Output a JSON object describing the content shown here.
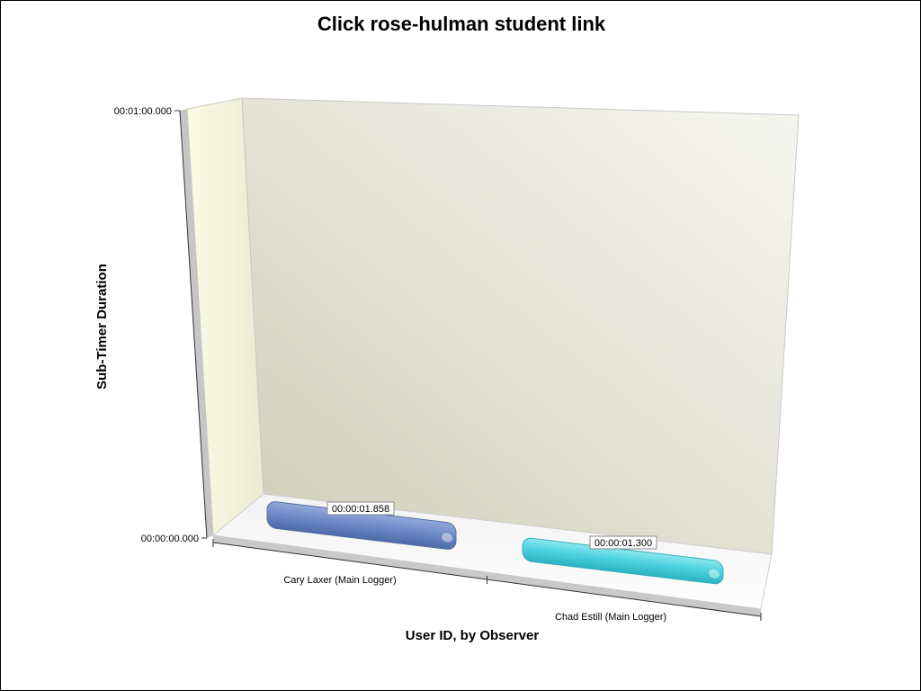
{
  "chart_data": {
    "type": "bar",
    "title": "Click rose-hulman student link",
    "xlabel": "User ID, by Observer",
    "ylabel": "Sub-Timer Duration",
    "categories": [
      "Cary Laxer (Main Logger)",
      "Chad Estill (Main Logger)"
    ],
    "values": [
      1.858,
      1.3
    ],
    "value_labels": [
      "00:00:01.858",
      "00:00:01.300"
    ],
    "ylim": [
      0,
      60
    ],
    "y_tick_values": [
      0,
      60
    ],
    "y_tick_labels": [
      "00:00:00.000",
      "00:01:00.000"
    ],
    "bar_colors": [
      "#6f8bc8",
      "#4dd3e0"
    ],
    "grid": false,
    "legend": "none",
    "three_d": true
  }
}
